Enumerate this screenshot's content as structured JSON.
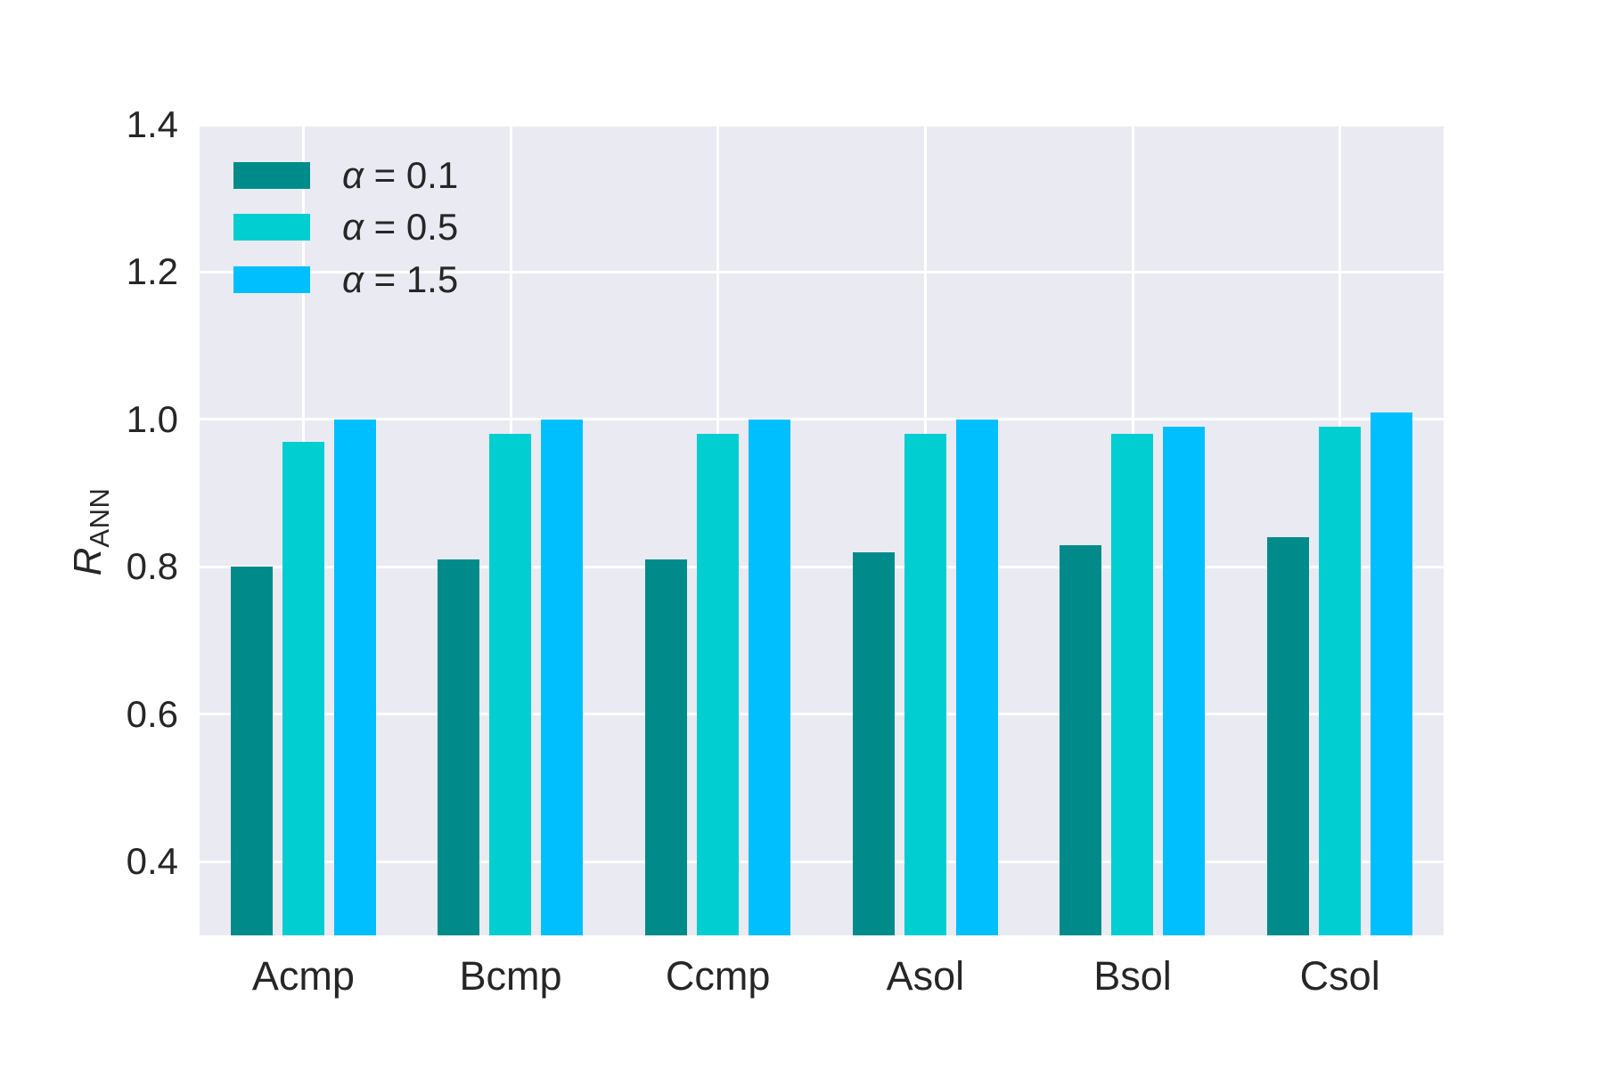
{
  "figure": {
    "background": "#ffffff",
    "plot_background": "#eaeaf2",
    "grid_color": "#ffffff",
    "text_color": "#262626"
  },
  "y_axis": {
    "label_main": "R",
    "label_subscript": "ANN"
  },
  "chart_data": {
    "type": "bar",
    "title": "",
    "xlabel": "",
    "ylabel": "R_ANN",
    "categories": [
      "Acmp",
      "Bcmp",
      "Ccmp",
      "Asol",
      "Bsol",
      "Csol"
    ],
    "series": [
      {
        "name": "α = 0.1",
        "legend_symbol": "α",
        "legend_rest": " = 0.1",
        "color": "#008b8b",
        "values": [
          0.8,
          0.81,
          0.81,
          0.82,
          0.83,
          0.84
        ]
      },
      {
        "name": "α = 0.5",
        "legend_symbol": "α",
        "legend_rest": " = 0.5",
        "color": "#00ced1",
        "values": [
          0.97,
          0.98,
          0.98,
          0.98,
          0.98,
          0.99
        ]
      },
      {
        "name": "α = 1.5",
        "legend_symbol": "α",
        "legend_rest": " = 1.5",
        "color": "#00bfff",
        "values": [
          1.0,
          1.0,
          1.0,
          1.0,
          0.99,
          1.01
        ]
      }
    ],
    "ylim": [
      0.3,
      1.4
    ],
    "yticks": [
      0.4,
      0.6,
      0.8,
      1.0,
      1.2,
      1.4
    ],
    "ytick_labels": [
      "0.4",
      "0.6",
      "0.8",
      "1.0",
      "1.2",
      "1.4"
    ],
    "grid": true,
    "legend_position": "upper left"
  }
}
